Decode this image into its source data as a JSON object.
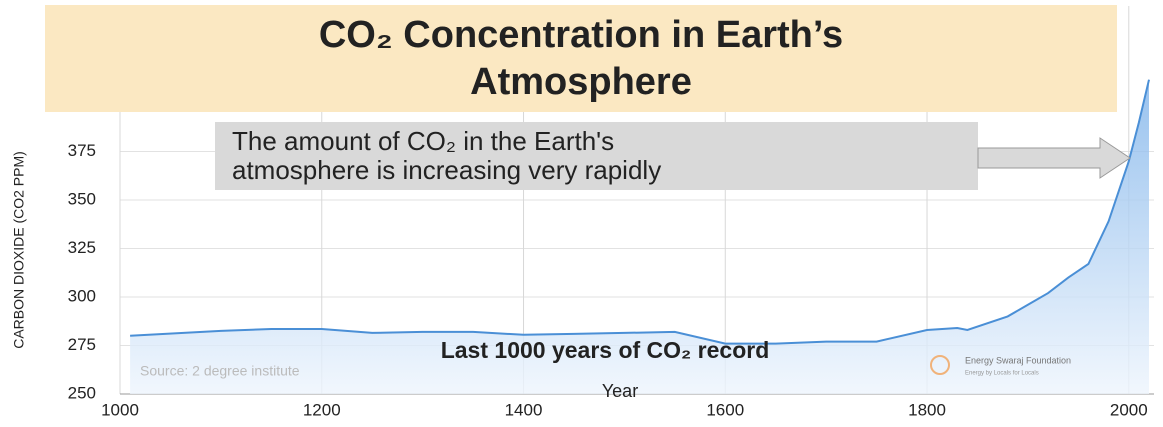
{
  "chart_data": {
    "type": "area",
    "title": [
      "CO₂ Concentration in Earth’s",
      "Atmosphere"
    ],
    "annotation": [
      "The amount of CO₂ in the Earth's",
      "atmosphere is increasing very rapidly"
    ],
    "subtitle": "Last 1000 years of CO₂ record",
    "source": "Source: 2 degree institute",
    "logo": [
      "Energy Swaraj Foundation",
      "Energy by Locals for Locals"
    ],
    "x_label": "Year",
    "y_label": "CARBON DIOXIDE (CO2 PPM)",
    "x": [
      1010,
      1100,
      1150,
      1200,
      1250,
      1300,
      1350,
      1400,
      1450,
      1500,
      1550,
      1600,
      1650,
      1700,
      1750,
      1800,
      1830,
      1840,
      1880,
      1900,
      1920,
      1940,
      1960,
      1980,
      2000,
      2010,
      2020
    ],
    "series": [
      {
        "name": "CO2",
        "color": "#4a8fd6",
        "values": [
          280,
          282.5,
          283.5,
          283.5,
          281.5,
          282,
          282,
          280.5,
          281,
          281.5,
          282,
          276,
          276,
          277,
          277,
          283,
          284,
          283,
          290,
          296,
          302,
          310,
          317,
          339,
          370,
          390,
          412
        ]
      }
    ],
    "xlim": [
      1000,
      2025
    ],
    "ylim": [
      250,
      450
    ],
    "xticks": [
      1000,
      1200,
      1400,
      1600,
      1800,
      2000
    ],
    "yticks": [
      250,
      275,
      300,
      325,
      350,
      375
    ],
    "grid": true
  }
}
